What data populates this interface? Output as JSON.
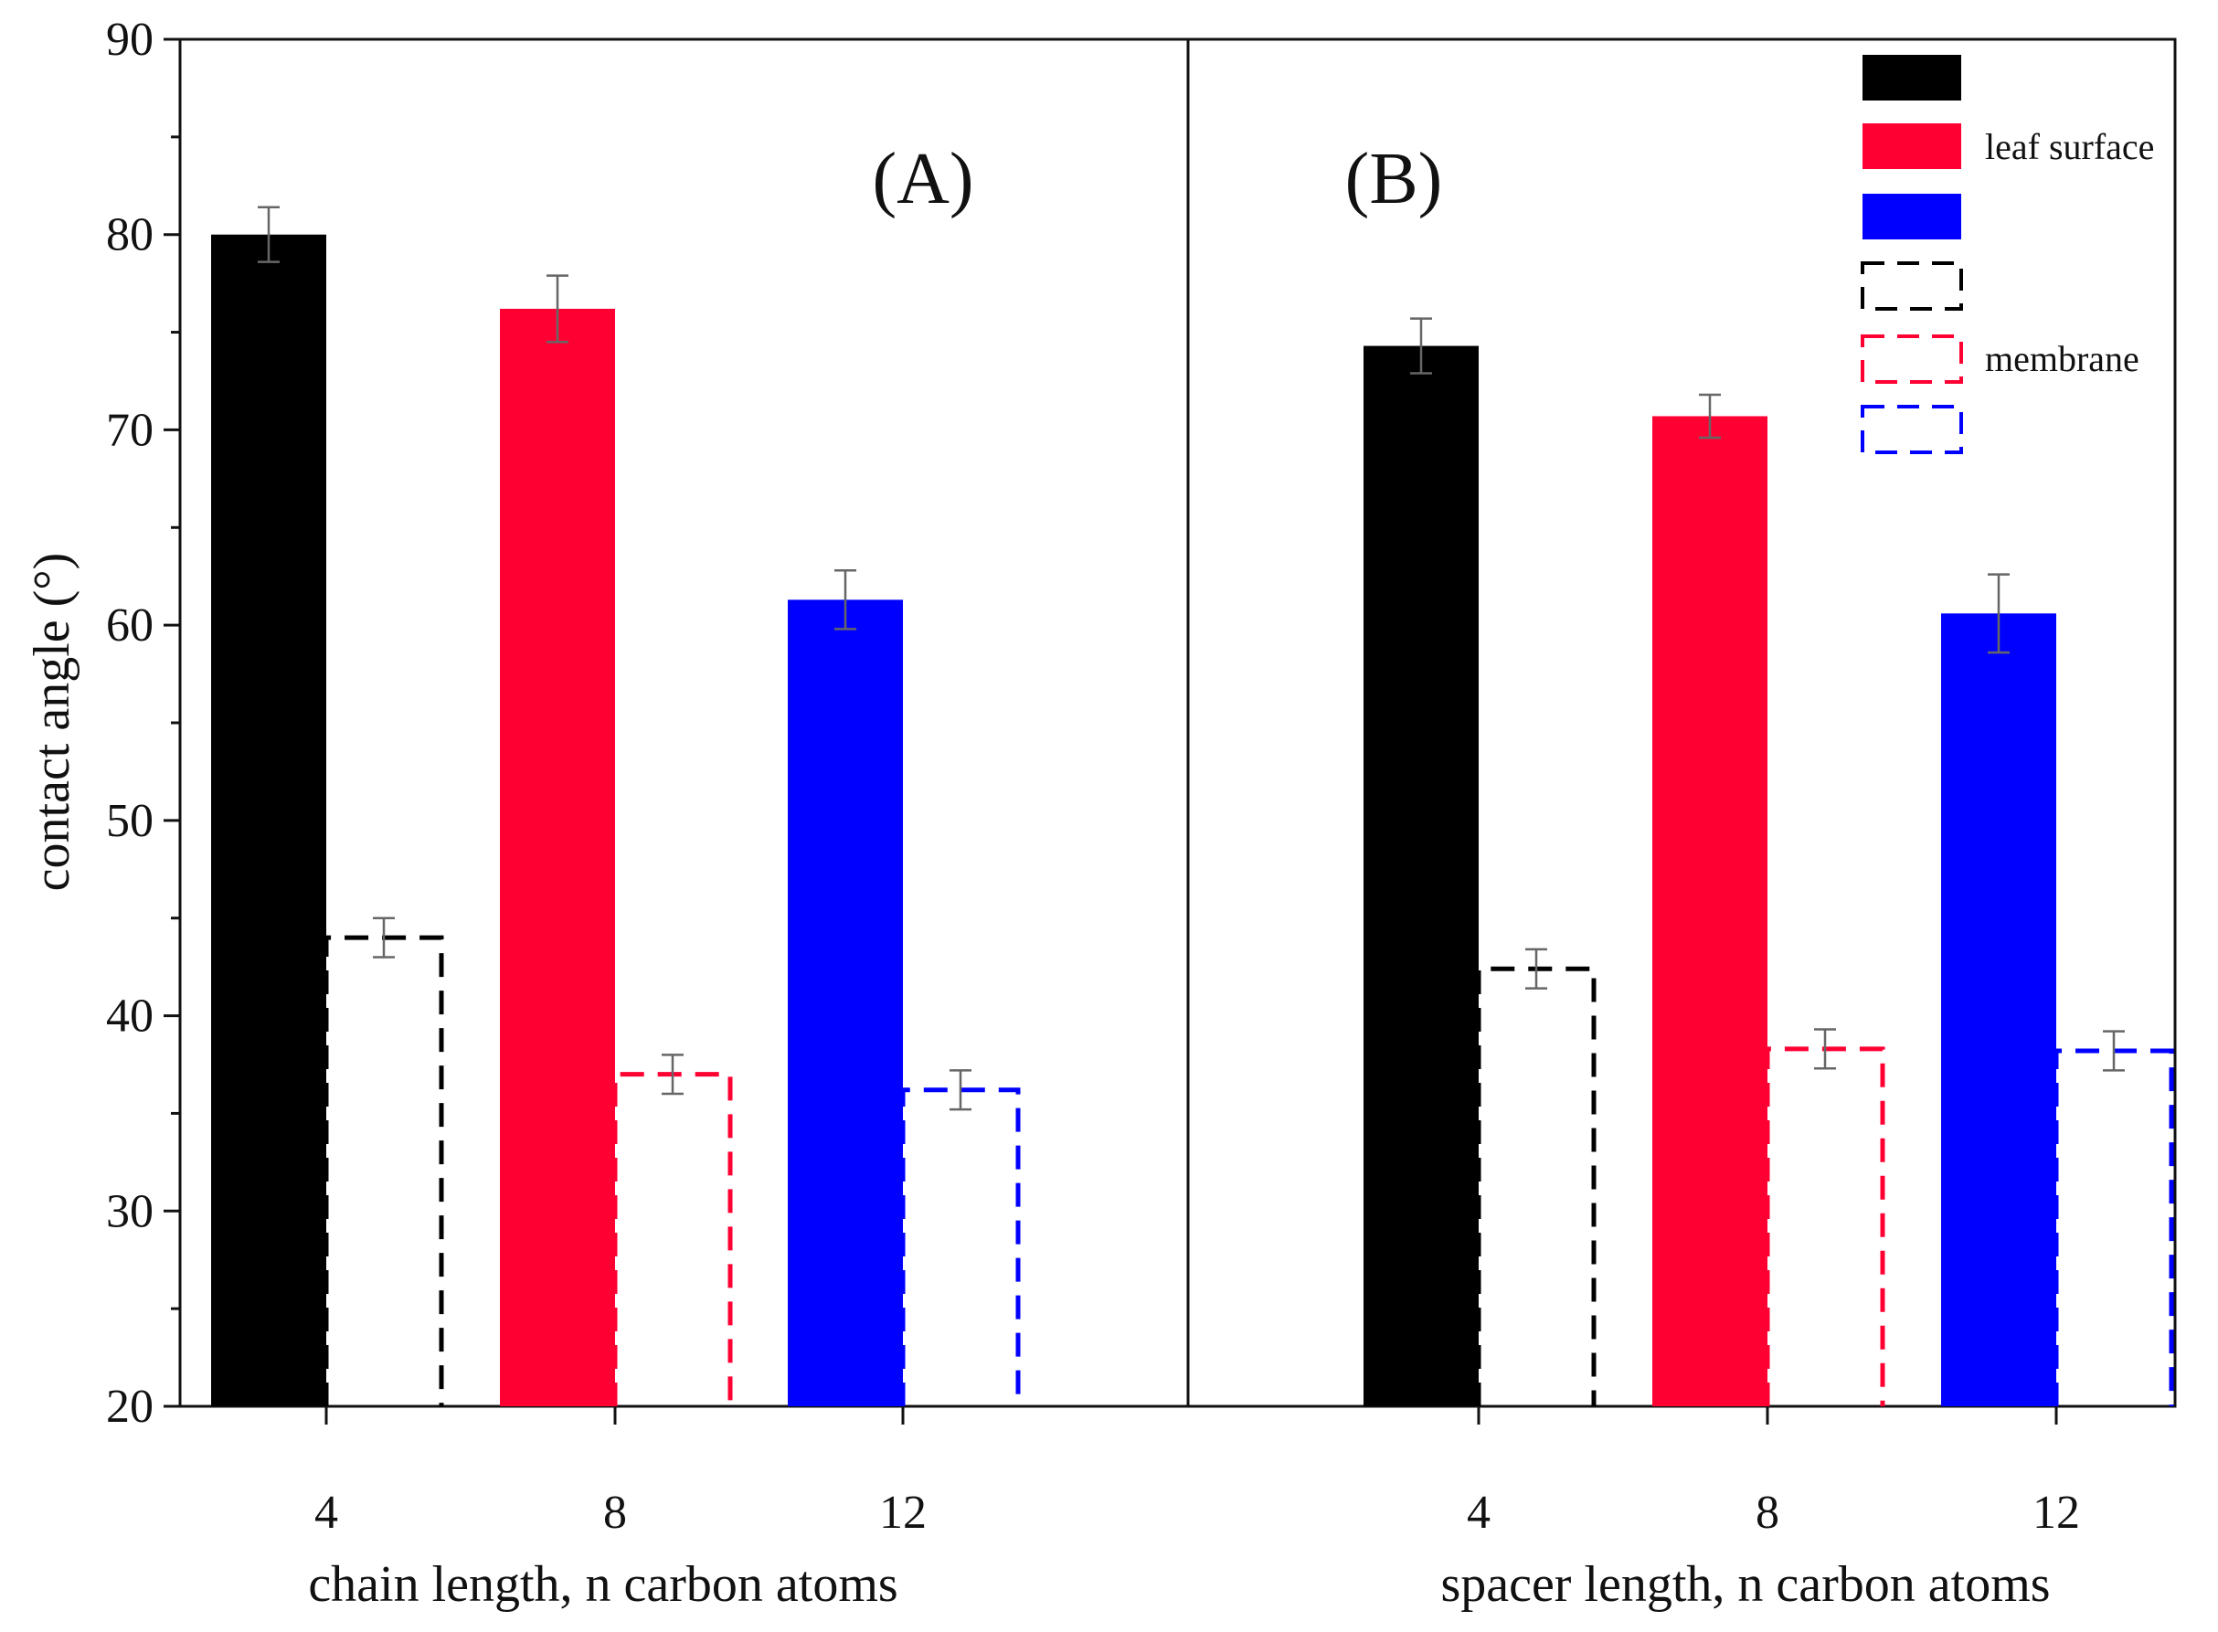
{
  "chart_data": {
    "type": "bar",
    "ylabel": "contact angle (°)",
    "ylim": [
      20,
      90
    ],
    "yticks": [
      "20",
      "30",
      "40",
      "50",
      "60",
      "70",
      "80",
      "90"
    ],
    "grid": false,
    "legend": {
      "position": "top-right",
      "groups": [
        {
          "label": "leaf surface",
          "style": "solid",
          "colors": [
            "#000000",
            "#ff0033",
            "#0000ff"
          ]
        },
        {
          "label": "membrane",
          "style": "dashed",
          "colors": [
            "#000000",
            "#ff0033",
            "#0000ff"
          ]
        }
      ]
    },
    "panels": [
      {
        "label": "(A)",
        "xlabel": "chain length, n carbon atoms",
        "categories": [
          "4",
          "8",
          "12"
        ],
        "colors": [
          "#000000",
          "#ff0033",
          "#0000ff"
        ],
        "series": [
          {
            "name": "leaf surface",
            "style": "solid",
            "values": [
              80.0,
              76.2,
              61.3
            ],
            "errors": [
              1.4,
              1.7,
              1.5
            ]
          },
          {
            "name": "membrane",
            "style": "dashed",
            "values": [
              44.0,
              37.0,
              36.2
            ],
            "errors": [
              1.0,
              1.0,
              1.0
            ]
          }
        ]
      },
      {
        "label": "(B)",
        "xlabel": "spacer length, n carbon atoms",
        "categories": [
          "4",
          "8",
          "12"
        ],
        "colors": [
          "#000000",
          "#ff0033",
          "#0000ff"
        ],
        "series": [
          {
            "name": "leaf surface",
            "style": "solid",
            "values": [
              74.3,
              70.7,
              60.6
            ],
            "errors": [
              1.4,
              1.1,
              2.0
            ]
          },
          {
            "name": "membrane",
            "style": "dashed",
            "values": [
              42.4,
              38.3,
              38.2
            ],
            "errors": [
              1.0,
              1.0,
              1.0
            ]
          }
        ]
      }
    ]
  }
}
